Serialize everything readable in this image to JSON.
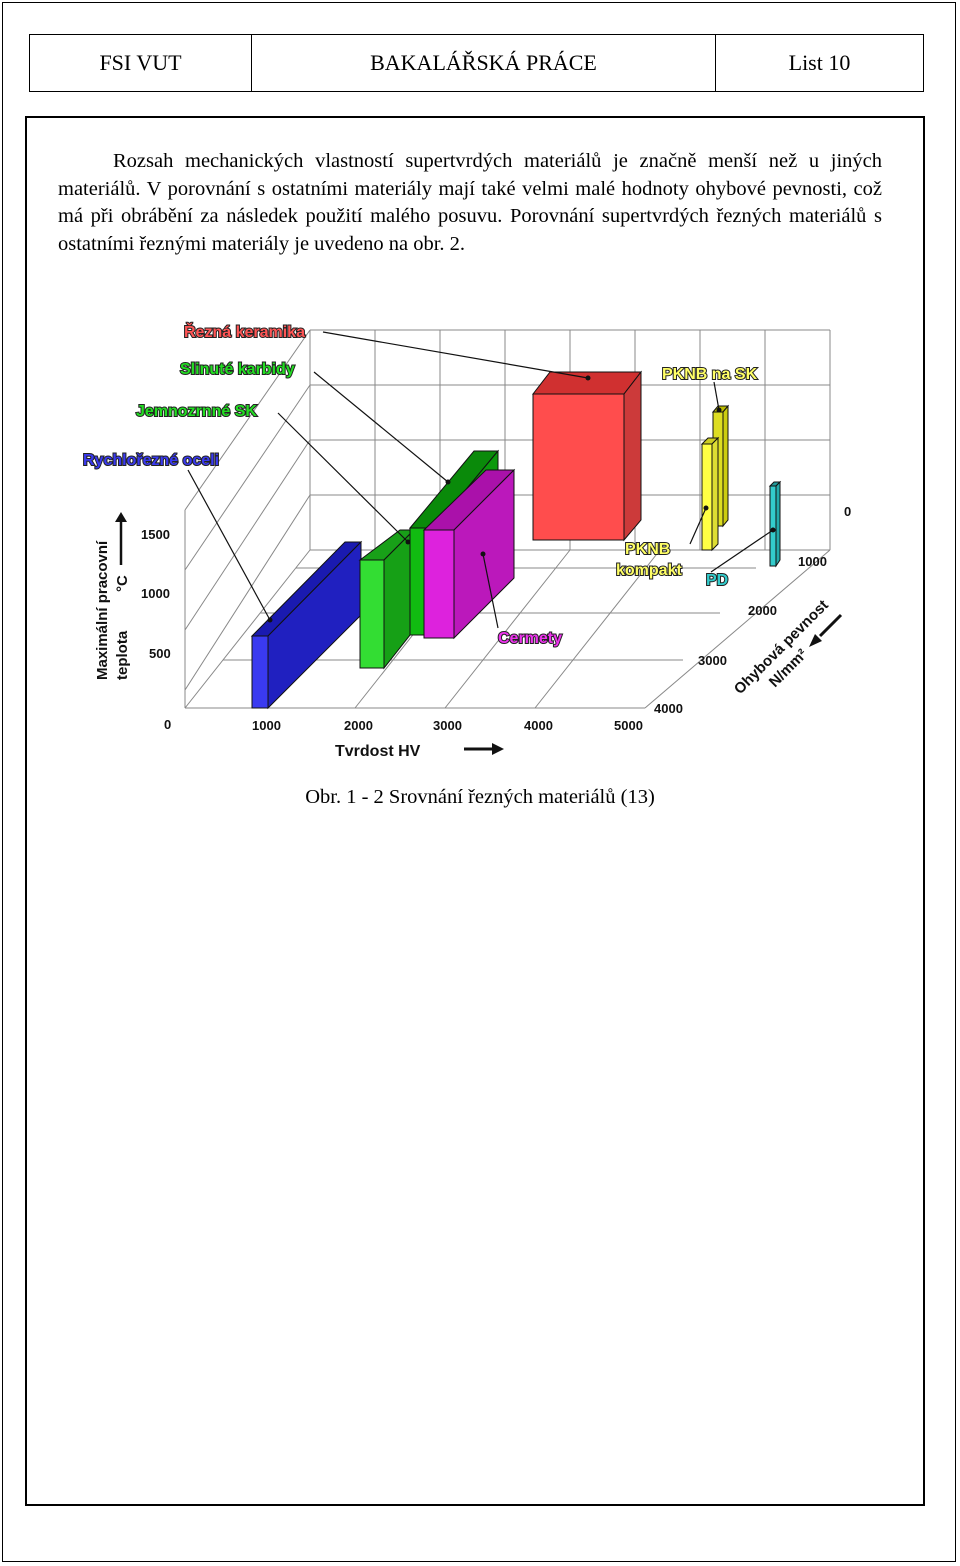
{
  "header": {
    "left": "FSI VUT",
    "center": "BAKALÁŘSKÁ PRÁCE",
    "right": "List  10"
  },
  "body_text": "Rozsah mechanických vlastností supertvrdých materiálů je značně menší než u jiných materiálů. V porovnání s ostatními materiály mají také velmi malé hodnoty ohybové pevnosti, což má při obrábění za následek použití malého posuvu. Porovnání supertvrdých řezných materiálů s ostatními řeznými materiály je uvedeno na obr. 2.",
  "figure": {
    "labels": {
      "rezna_keramika": "Řezná keramika",
      "slinute_karbidy": "Slinuté karbidy",
      "jemnozrnne_sk": "Jemnozrnné SK",
      "rychlorezne_oceli": "Rychlořezné oceli",
      "pknb_na_sk": "PKNB na SK",
      "pknb_kompakt_1": "PKNB",
      "pknb_kompakt_2": "kompakt",
      "pd": "PD",
      "cermety": "Cermety"
    },
    "axis_y_title_1": "Maximální pracovní",
    "axis_y_title_2": "teplota",
    "axis_y_unit": "°C",
    "axis_y_ticks": [
      "0",
      "500",
      "1000",
      "1500"
    ],
    "axis_x_title": "Tvrdost  HV",
    "axis_x_ticks": [
      "1000",
      "2000",
      "3000",
      "4000",
      "5000"
    ],
    "axis_z_title_1": "Ohybová pevnost",
    "axis_z_title_2": "N/mm²",
    "axis_z_ticks": [
      "0",
      "1000",
      "2000",
      "3000",
      "4000"
    ],
    "colors": {
      "rychlorezne_oceli": "#3a3af0",
      "jemnozrnne_sk": "#22cc22",
      "slinute_karbidy": "#11aa11",
      "cermety": "#dd22dd",
      "rezna_keramika": "#ff4d4d",
      "pknb": "#ffff44",
      "pd": "#33cccc"
    }
  },
  "caption": "Obr. 1 - 2 Srovnání řezných materiálů (13)"
}
